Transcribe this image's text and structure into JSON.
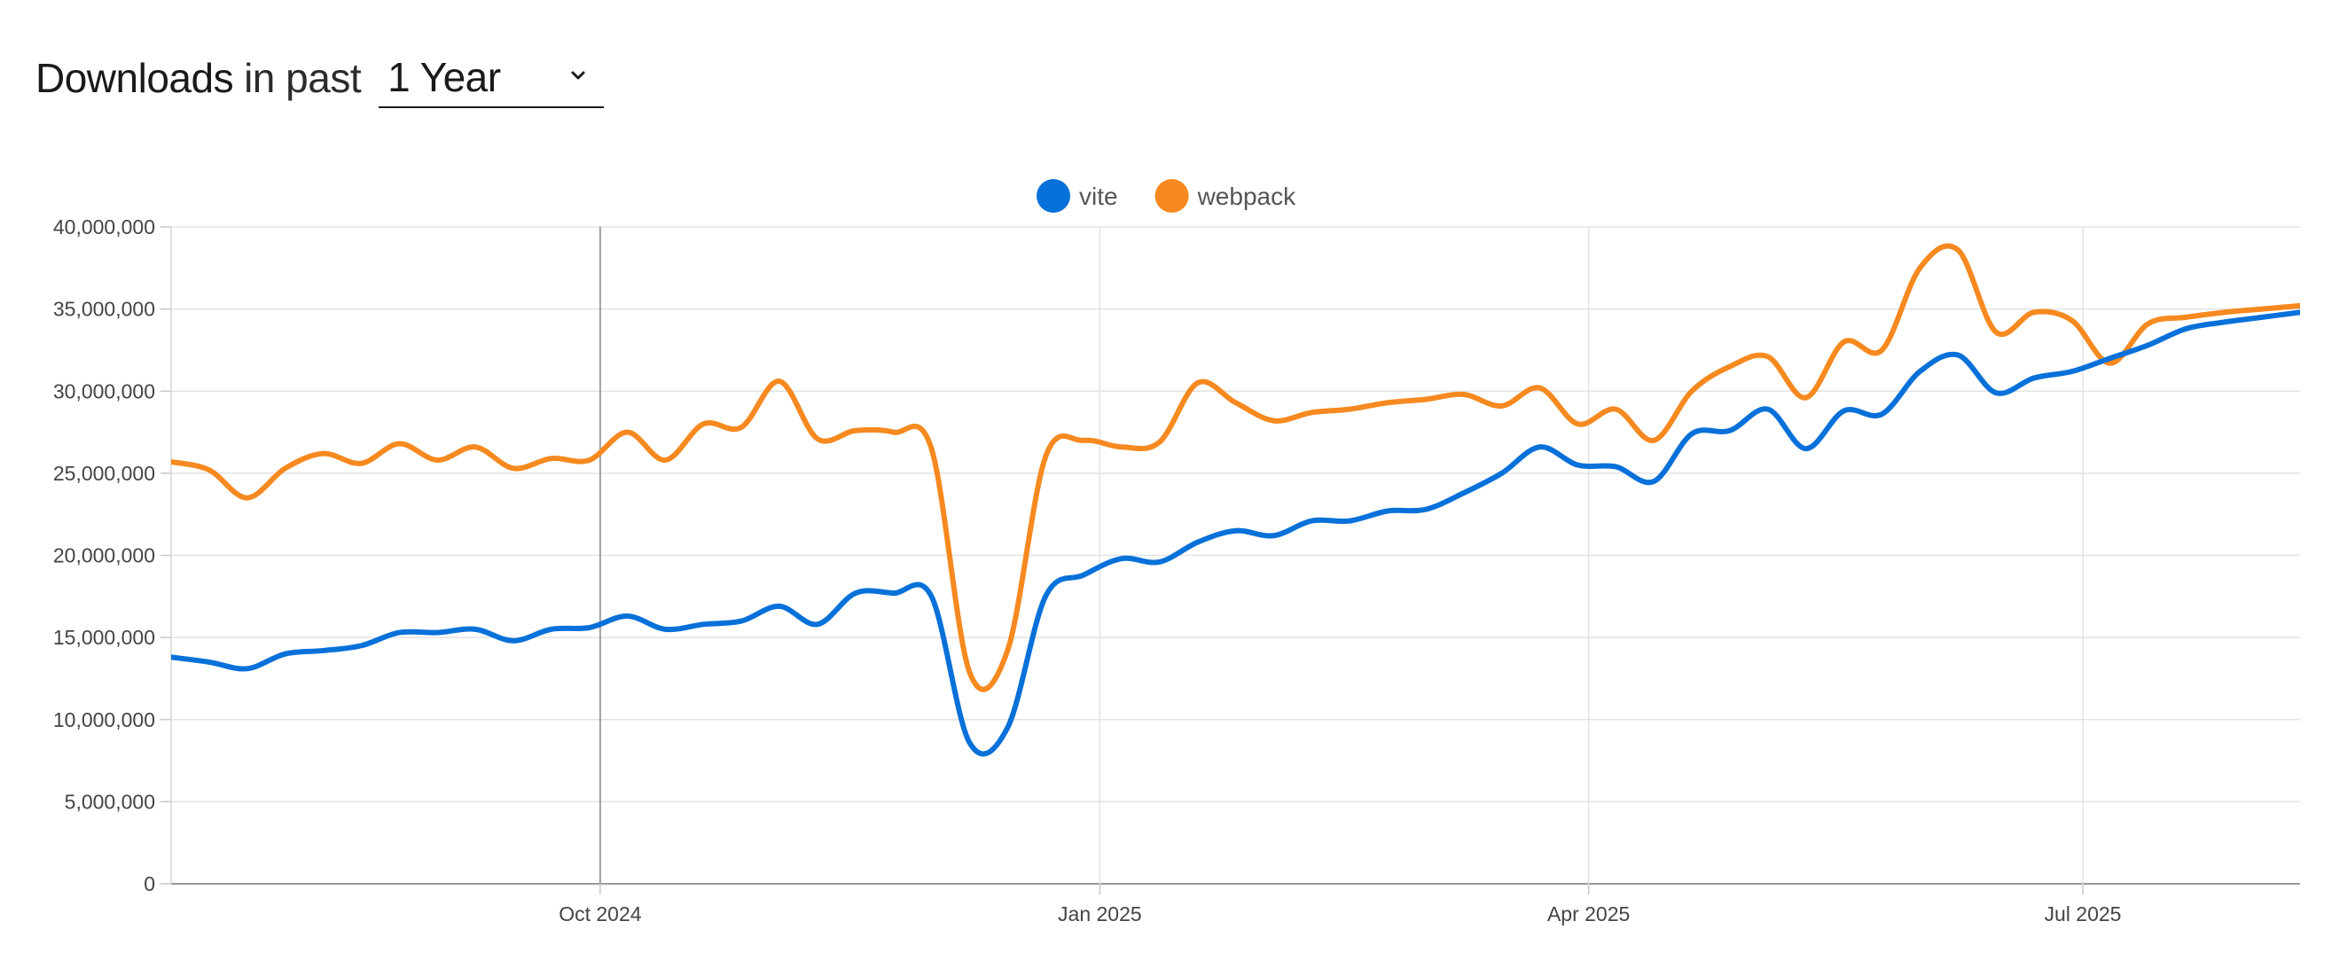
{
  "header": {
    "title_strong": "Downloads",
    "title_light": "in past",
    "period_selected": "1 Year"
  },
  "chart_data": {
    "type": "line",
    "title": "Downloads in past 1 Year",
    "xlabel": "",
    "ylabel": "",
    "legend_position": "top-center",
    "ylim": [
      0,
      40000000
    ],
    "yticks": [
      0,
      5000000,
      10000000,
      15000000,
      20000000,
      25000000,
      30000000,
      35000000,
      40000000
    ],
    "ytick_labels": [
      "0",
      "5,000,000",
      "10,000,000",
      "15,000,000",
      "20,000,000",
      "25,000,000",
      "30,000,000",
      "35,000,000",
      "40,000,000"
    ],
    "xlim": [
      "2024-07-14",
      "2025-08-10"
    ],
    "xticks": [
      "2024-10-01",
      "2025-01-01",
      "2025-04-01",
      "2025-07-01"
    ],
    "xtick_labels": [
      "Oct 2024",
      "Jan 2025",
      "Apr 2025",
      "Jul 2025"
    ],
    "x": [
      "2024-07-14",
      "2024-07-21",
      "2024-07-28",
      "2024-08-04",
      "2024-08-11",
      "2024-08-18",
      "2024-08-25",
      "2024-09-01",
      "2024-09-08",
      "2024-09-15",
      "2024-09-22",
      "2024-09-29",
      "2024-10-06",
      "2024-10-13",
      "2024-10-20",
      "2024-10-27",
      "2024-11-03",
      "2024-11-10",
      "2024-11-17",
      "2024-11-24",
      "2024-12-01",
      "2024-12-08",
      "2024-12-15",
      "2024-12-22",
      "2024-12-29",
      "2025-01-05",
      "2025-01-12",
      "2025-01-19",
      "2025-01-26",
      "2025-02-02",
      "2025-02-09",
      "2025-02-16",
      "2025-02-23",
      "2025-03-02",
      "2025-03-09",
      "2025-03-16",
      "2025-03-23",
      "2025-03-30",
      "2025-04-06",
      "2025-04-13",
      "2025-04-20",
      "2025-04-27",
      "2025-05-04",
      "2025-05-11",
      "2025-05-18",
      "2025-05-25",
      "2025-06-01",
      "2025-06-08",
      "2025-06-15",
      "2025-06-22",
      "2025-06-29",
      "2025-07-06",
      "2025-07-13",
      "2025-07-20",
      "2025-07-27",
      "2025-08-03",
      "2025-08-10"
    ],
    "series": [
      {
        "name": "vite",
        "color": "#0871d9",
        "values": [
          13800000,
          13500000,
          13100000,
          14000000,
          14200000,
          14500000,
          15300000,
          15300000,
          15500000,
          14800000,
          15500000,
          15600000,
          16300000,
          15500000,
          15800000,
          16000000,
          16900000,
          15800000,
          17700000,
          17700000,
          17500000,
          8600000,
          9500000,
          17500000,
          18800000,
          19800000,
          19600000,
          20800000,
          21500000,
          21200000,
          22100000,
          22100000,
          22700000,
          22800000,
          23800000,
          25000000,
          26600000,
          25500000,
          25400000,
          24500000,
          27400000,
          27600000,
          28900000,
          26500000,
          28800000,
          28600000,
          31200000,
          32200000,
          29900000,
          30800000,
          31200000,
          32000000,
          32800000,
          33800000,
          34200000,
          34500000,
          34800000
        ]
      },
      {
        "name": "webpack",
        "color": "#f6891f",
        "values": [
          25700000,
          25200000,
          23500000,
          25300000,
          26200000,
          25600000,
          26800000,
          25800000,
          26600000,
          25300000,
          25900000,
          25800000,
          27500000,
          25800000,
          28000000,
          27800000,
          30600000,
          27100000,
          27600000,
          27500000,
          26500000,
          12900000,
          14200000,
          26000000,
          27000000,
          26600000,
          26900000,
          30500000,
          29300000,
          28200000,
          28700000,
          28900000,
          29300000,
          29500000,
          29800000,
          29100000,
          30200000,
          28000000,
          28900000,
          27000000,
          30000000,
          31500000,
          32100000,
          29600000,
          33000000,
          32500000,
          37500000,
          38600000,
          33600000,
          34800000,
          34300000,
          31700000,
          34100000,
          34500000,
          34800000,
          35000000,
          35200000
        ]
      }
    ]
  }
}
